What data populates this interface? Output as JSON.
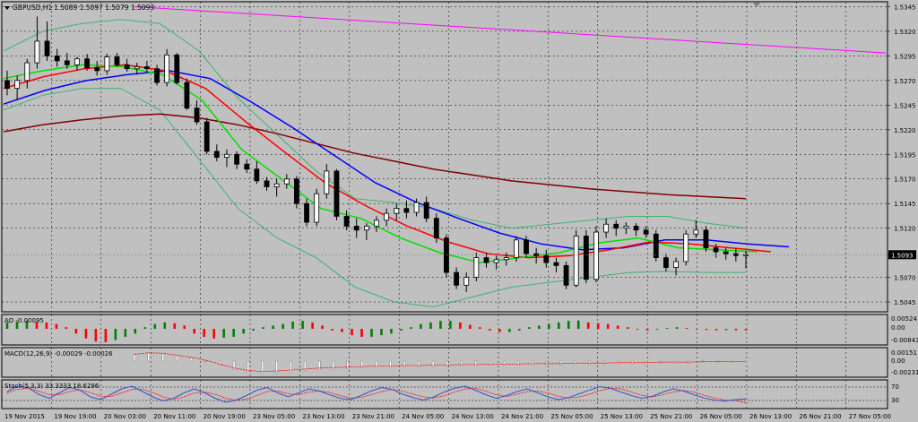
{
  "window": {
    "symbol_title": "GBPUSD,H1",
    "ohlc_text": "1.5089 1.5097 1.5079 1.5093",
    "current_price": "1.5093"
  },
  "price_axis": {
    "labels": [
      "1.5345",
      "1.5320",
      "1.5295",
      "1.5270",
      "1.5245",
      "1.5220",
      "1.5195",
      "1.5170",
      "1.5145",
      "1.5120",
      "1.5093",
      "1.5070",
      "1.5045"
    ],
    "range": [
      1.5035,
      1.535
    ]
  },
  "time_axis": {
    "labels": [
      "19 Nov 2015",
      "19 Nov 19:00",
      "20 Nov 03:00",
      "20 Nov 11:00",
      "20 Nov 19:00",
      "23 Nov 05:00",
      "23 Nov 13:00",
      "23 Nov 21:00",
      "24 Nov 05:00",
      "24 Nov 13:00",
      "24 Nov 21:00",
      "25 Nov 05:00",
      "25 Nov 13:00",
      "25 Nov 21:00",
      "26 Nov 05:00",
      "26 Nov 13:00",
      "26 Nov 21:00",
      "27 Nov 05:00"
    ]
  },
  "subwindows": [
    {
      "name": "AO",
      "label": "AO -0.00095",
      "axis": [
        "0.00524",
        "0.00",
        "-0.00843"
      ]
    },
    {
      "name": "MACD",
      "label": "MACD(12,26,9) -0.00029 -0.00026",
      "axis": [
        "0.00151",
        "0.00",
        "-0.00231"
      ]
    },
    {
      "name": "Stoch",
      "label": "Stoch(5,3,3) 33.3333 18.6286",
      "axis": [
        "70",
        "30"
      ]
    }
  ],
  "colors": {
    "background": "#c0c0c0",
    "bull_candle": "#ffffff",
    "bear_candle": "#000000",
    "ma_fast": "#00e000",
    "ma_mid": "#ff0000",
    "ma_slow": "#0000ff",
    "ma_long": "#800000",
    "bollinger": "#3cb371",
    "trendline": "#ff00ff",
    "ao_up": "#008000",
    "ao_down": "#ff0000",
    "stoch_main": "#3355cc",
    "stoch_signal": "#ff0000"
  },
  "chart_data": {
    "type": "candlestick",
    "symbol": "GBPUSD",
    "timeframe": "H1",
    "candles_ohlc": [
      [
        1.527,
        1.528,
        1.5255,
        1.5262
      ],
      [
        1.5262,
        1.5275,
        1.525,
        1.527
      ],
      [
        1.527,
        1.5292,
        1.5262,
        1.5288
      ],
      [
        1.5288,
        1.5335,
        1.5282,
        1.531
      ],
      [
        1.531,
        1.533,
        1.529,
        1.5295
      ],
      [
        1.5295,
        1.5302,
        1.5284,
        1.529
      ],
      [
        1.529,
        1.5298,
        1.5282,
        1.5286
      ],
      [
        1.5286,
        1.5294,
        1.528,
        1.5292
      ],
      [
        1.5292,
        1.5297,
        1.528,
        1.5283
      ],
      [
        1.5283,
        1.529,
        1.5275,
        1.528
      ],
      [
        1.528,
        1.5297,
        1.5276,
        1.5294
      ],
      [
        1.5294,
        1.5298,
        1.5284,
        1.5286
      ],
      [
        1.5286,
        1.5292,
        1.5279,
        1.5282
      ],
      [
        1.5282,
        1.5288,
        1.5276,
        1.5284
      ],
      [
        1.5284,
        1.529,
        1.5278,
        1.5282
      ],
      [
        1.5282,
        1.5286,
        1.5265,
        1.5268
      ],
      [
        1.5268,
        1.5302,
        1.5264,
        1.5296
      ],
      [
        1.5296,
        1.5298,
        1.5266,
        1.5268
      ],
      [
        1.5268,
        1.5272,
        1.524,
        1.5242
      ],
      [
        1.5242,
        1.525,
        1.5225,
        1.5228
      ],
      [
        1.5228,
        1.5232,
        1.5195,
        1.5198
      ],
      [
        1.5198,
        1.5205,
        1.5188,
        1.5192
      ],
      [
        1.5192,
        1.52,
        1.5182,
        1.5195
      ],
      [
        1.5195,
        1.5198,
        1.518,
        1.5185
      ],
      [
        1.5185,
        1.519,
        1.5176,
        1.518
      ],
      [
        1.518,
        1.5188,
        1.5165,
        1.5168
      ],
      [
        1.5168,
        1.5172,
        1.5158,
        1.5162
      ],
      [
        1.5162,
        1.517,
        1.5152,
        1.5165
      ],
      [
        1.5165,
        1.5175,
        1.516,
        1.517
      ],
      [
        1.517,
        1.5173,
        1.514,
        1.5145
      ],
      [
        1.5145,
        1.515,
        1.5122,
        1.5126
      ],
      [
        1.5126,
        1.516,
        1.5122,
        1.5155
      ],
      [
        1.5155,
        1.5185,
        1.515,
        1.5178
      ],
      [
        1.5178,
        1.518,
        1.5128,
        1.5132
      ],
      [
        1.5132,
        1.5138,
        1.5118,
        1.5122
      ],
      [
        1.5122,
        1.513,
        1.511,
        1.5118
      ],
      [
        1.5118,
        1.5125,
        1.5108,
        1.5122
      ],
      [
        1.5122,
        1.5132,
        1.5116,
        1.5128
      ],
      [
        1.5128,
        1.514,
        1.5122,
        1.5135
      ],
      [
        1.5135,
        1.5145,
        1.5128,
        1.514
      ],
      [
        1.514,
        1.5148,
        1.513,
        1.5136
      ],
      [
        1.5136,
        1.515,
        1.5132,
        1.5146
      ],
      [
        1.5146,
        1.5152,
        1.5126,
        1.513
      ],
      [
        1.513,
        1.5135,
        1.5105,
        1.511
      ],
      [
        1.511,
        1.5114,
        1.507,
        1.5075
      ],
      [
        1.5075,
        1.508,
        1.5058,
        1.5062
      ],
      [
        1.5062,
        1.5075,
        1.5055,
        1.507
      ],
      [
        1.507,
        1.5095,
        1.5066,
        1.509
      ],
      [
        1.509,
        1.5095,
        1.508,
        1.5085
      ],
      [
        1.5085,
        1.5092,
        1.5078,
        1.5088
      ],
      [
        1.5088,
        1.5095,
        1.5082,
        1.509
      ],
      [
        1.509,
        1.5112,
        1.5086,
        1.5108
      ],
      [
        1.5108,
        1.5112,
        1.509,
        1.5094
      ],
      [
        1.5094,
        1.51,
        1.5084,
        1.5092
      ],
      [
        1.5092,
        1.5098,
        1.508,
        1.5085
      ],
      [
        1.5085,
        1.509,
        1.5075,
        1.5082
      ],
      [
        1.5082,
        1.5086,
        1.5058,
        1.5062
      ],
      [
        1.5062,
        1.5118,
        1.506,
        1.5112
      ],
      [
        1.5112,
        1.5118,
        1.5064,
        1.5068
      ],
      [
        1.5068,
        1.5122,
        1.5065,
        1.5116
      ],
      [
        1.5116,
        1.513,
        1.511,
        1.5124
      ],
      [
        1.5124,
        1.5128,
        1.5112,
        1.512
      ],
      [
        1.512,
        1.5126,
        1.5114,
        1.5122
      ],
      [
        1.5122,
        1.5125,
        1.5112,
        1.5118
      ],
      [
        1.5118,
        1.5122,
        1.511,
        1.5114
      ],
      [
        1.5114,
        1.5118,
        1.5086,
        1.509
      ],
      [
        1.509,
        1.5094,
        1.5076,
        1.508
      ],
      [
        1.508,
        1.509,
        1.5072,
        1.5086
      ],
      [
        1.5086,
        1.5118,
        1.5082,
        1.5114
      ],
      [
        1.5114,
        1.5128,
        1.511,
        1.5118
      ],
      [
        1.5118,
        1.5122,
        1.5096,
        1.51
      ],
      [
        1.51,
        1.5104,
        1.509,
        1.5096
      ],
      [
        1.5096,
        1.51,
        1.5088,
        1.5094
      ],
      [
        1.5094,
        1.5099,
        1.5086,
        1.5092
      ],
      [
        1.5092,
        1.5097,
        1.5079,
        1.5093
      ]
    ],
    "moving_averages": {
      "ma_fast": [
        1.5272,
        1.528,
        1.5286,
        1.5284,
        1.5276,
        1.525,
        1.52,
        1.517,
        1.514,
        1.513,
        1.511,
        1.5095,
        1.5085,
        1.509,
        1.5095,
        1.5105,
        1.511,
        1.51,
        1.5098,
        1.5096
      ],
      "ma_mid": [
        1.5262,
        1.5274,
        1.5282,
        1.5286,
        1.528,
        1.5262,
        1.5228,
        1.5196,
        1.5165,
        1.5142,
        1.5122,
        1.5106,
        1.5094,
        1.509,
        1.5092,
        1.5098,
        1.5106,
        1.5104,
        1.51,
        1.5096
      ],
      "ma_slow": [
        1.5246,
        1.526,
        1.527,
        1.5276,
        1.528,
        1.5272,
        1.5248,
        1.5222,
        1.5194,
        1.5166,
        1.5146,
        1.513,
        1.5115,
        1.5104,
        1.5098,
        1.51,
        1.5108,
        1.5108,
        1.5104,
        1.5101
      ],
      "ma_long": [
        1.5218,
        1.5225,
        1.523,
        1.5234,
        1.5236,
        1.5232,
        1.5225,
        1.5216,
        1.5206,
        1.5196,
        1.5188,
        1.518,
        1.5174,
        1.5168,
        1.5164,
        1.516,
        1.5157,
        1.5154,
        1.5152,
        1.515
      ],
      "bb_upper": [
        1.53,
        1.532,
        1.5328,
        1.5332,
        1.5328,
        1.53,
        1.5252,
        1.5215,
        1.5178,
        1.515,
        1.5146,
        1.514,
        1.5128,
        1.512,
        1.5124,
        1.5128,
        1.5132,
        1.5132,
        1.5125,
        1.512
      ],
      "bb_lower": [
        1.524,
        1.5255,
        1.5262,
        1.5262,
        1.524,
        1.519,
        1.514,
        1.511,
        1.509,
        1.506,
        1.5045,
        1.504,
        1.505,
        1.506,
        1.5065,
        1.507,
        1.5075,
        1.5076,
        1.5075,
        1.5075
      ]
    },
    "trendline": {
      "start": 1.5345,
      "end": 1.5298
    },
    "ao": [
      0.004,
      0.0045,
      0.005,
      0.0045,
      0.004,
      0.003,
      0.001,
      -0.003,
      -0.006,
      -0.008,
      -0.0084,
      -0.007,
      -0.005,
      -0.003,
      0.001,
      0.003,
      0.004,
      0.0035,
      0.002,
      -0.003,
      -0.005,
      -0.006,
      -0.0055,
      -0.005,
      -0.003,
      -0.001,
      0.001,
      0.002,
      0.003,
      0.0045,
      0.005,
      0.004,
      0.002,
      -0.001,
      -0.002,
      -0.004,
      -0.005,
      -0.005,
      -0.004,
      -0.003,
      -0.001,
      0.001,
      0.003,
      0.004,
      0.005,
      0.005,
      0.004,
      0.0025,
      0.001,
      -0.001,
      -0.002,
      -0.002,
      -0.001,
      0.001,
      0.002,
      0.003,
      0.004,
      0.005,
      0.0052,
      0.004,
      0.0035,
      0.003,
      0.002,
      0.001,
      -0.0005,
      -0.001,
      -0.0005,
      0.0005,
      0.001,
      0.0005,
      -0.0005,
      -0.0007,
      -0.0009,
      -0.0008,
      -0.0009,
      -0.00095
    ],
    "macd_hist": [
      0.0012,
      0.0015,
      0.0014,
      0.001,
      0.0006,
      0.0,
      -0.0008,
      -0.0016,
      -0.0021,
      -0.0023,
      -0.0022,
      -0.002,
      -0.0018,
      -0.0016,
      -0.0015,
      -0.0014,
      -0.0013,
      -0.0012,
      -0.0012,
      -0.0011,
      -0.0011,
      -0.001,
      -0.001,
      -0.0009,
      -0.0009,
      -0.0008,
      -0.0008,
      -0.0008,
      -0.0007,
      -0.0007,
      -0.0007,
      -0.0006,
      -0.0006,
      -0.0006,
      -0.0005,
      -0.0005,
      -0.0005,
      -0.0004,
      -0.0004,
      -0.0004,
      -0.0003,
      -0.0003,
      -0.0003,
      -0.0003
    ],
    "stoch_main": [
      60,
      80,
      75,
      50,
      35,
      55,
      75,
      65,
      40,
      30,
      50,
      70,
      80,
      60,
      40,
      25,
      35,
      55,
      70,
      55,
      35,
      20,
      28,
      45,
      65,
      75,
      55,
      40,
      55,
      70,
      62,
      48,
      35,
      30,
      45,
      62,
      75,
      68,
      50,
      38,
      28,
      40,
      58,
      72,
      80,
      65,
      48,
      35,
      45,
      60,
      70,
      55,
      40,
      30,
      38,
      52,
      66,
      78,
      72,
      58,
      45,
      35,
      42,
      58,
      70,
      62,
      48,
      36,
      28,
      24,
      30,
      33
    ],
    "stoch_signal": [
      55,
      68,
      72,
      62,
      48,
      48,
      60,
      66,
      56,
      42,
      42,
      55,
      68,
      68,
      56,
      40,
      32,
      40,
      55,
      58,
      50,
      35,
      28,
      32,
      45,
      60,
      62,
      52,
      48,
      58,
      62,
      57,
      45,
      36,
      38,
      48,
      60,
      68,
      62,
      50,
      40,
      36,
      44,
      58,
      70,
      72,
      62,
      48,
      42,
      50,
      60,
      62,
      54,
      42,
      36,
      40,
      50,
      64,
      72,
      70,
      58,
      46,
      40,
      48,
      58,
      64,
      58,
      46,
      36,
      28,
      26,
      18.6
    ]
  }
}
